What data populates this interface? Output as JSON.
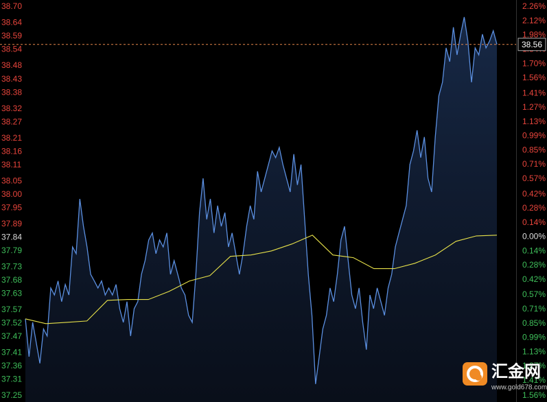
{
  "chart_data": {
    "type": "line",
    "reference": 37.84,
    "last_price": 38.56,
    "last_price_label": "38.56",
    "ylim": [
      37.25,
      38.7
    ],
    "yticks": [
      {
        "value": 38.7,
        "label": "38.70"
      },
      38.64,
      38.59,
      38.54,
      38.48,
      38.43,
      38.38,
      38.32,
      38.27,
      38.21,
      38.16,
      38.11,
      38.05,
      {
        "value": 38.0,
        "label": "38.00"
      },
      37.95,
      37.89,
      37.84,
      37.79,
      37.73,
      37.68,
      37.63,
      37.57,
      37.52,
      37.47,
      37.41,
      37.36,
      37.31,
      37.25
    ],
    "y2lim": [
      -1.56,
      2.26
    ],
    "y2ticks": [
      {
        "value": 2.26,
        "label": "2.26%"
      },
      {
        "value": 2.12,
        "label": "2.12%"
      },
      {
        "value": 1.98,
        "label": "1.98%"
      },
      {
        "value": 1.84,
        "label": "1.84%"
      },
      {
        "value": 1.7,
        "label": "1.70%"
      },
      {
        "value": 1.56,
        "label": "1.56%"
      },
      {
        "value": 1.41,
        "label": "1.41%"
      },
      {
        "value": 1.27,
        "label": "1.27%"
      },
      {
        "value": 1.13,
        "label": "1.13%"
      },
      {
        "value": 0.99,
        "label": "0.99%"
      },
      {
        "value": 0.85,
        "label": "0.85%"
      },
      {
        "value": 0.71,
        "label": "0.71%"
      },
      {
        "value": 0.57,
        "label": "0.57%"
      },
      {
        "value": 0.42,
        "label": "0.42%"
      },
      {
        "value": 0.28,
        "label": "0.28%"
      },
      {
        "value": 0.14,
        "label": "0.14%"
      },
      {
        "value": 0,
        "label": "0.00%"
      },
      {
        "value": -0.14,
        "label": "0.14%"
      },
      {
        "value": -0.28,
        "label": "0.28%"
      },
      {
        "value": -0.42,
        "label": "0.42%"
      },
      {
        "value": -0.57,
        "label": "0.57%"
      },
      {
        "value": -0.71,
        "label": "0.71%"
      },
      {
        "value": -0.85,
        "label": "0.85%"
      },
      {
        "value": -0.99,
        "label": "0.99%"
      },
      {
        "value": -1.13,
        "label": "1.13%"
      },
      {
        "value": -1.27,
        "label": "1.27%"
      },
      {
        "value": -1.41,
        "label": "1.41%"
      },
      {
        "value": -1.56,
        "label": "1.56%"
      }
    ],
    "series": [
      {
        "name": "price",
        "color": "#5b8fe0",
        "values": [
          37.537,
          37.396,
          37.524,
          37.447,
          37.371,
          37.499,
          37.473,
          37.652,
          37.626,
          37.678,
          37.601,
          37.665,
          37.626,
          37.805,
          37.78,
          37.984,
          37.882,
          37.805,
          37.703,
          37.678,
          37.652,
          37.678,
          37.626,
          37.652,
          37.626,
          37.665,
          37.575,
          37.524,
          37.601,
          37.473,
          37.575,
          37.601,
          37.703,
          37.754,
          37.831,
          37.857,
          37.78,
          37.831,
          37.805,
          37.857,
          37.703,
          37.754,
          37.703,
          37.652,
          37.626,
          37.55,
          37.524,
          37.703,
          37.933,
          38.061,
          37.908,
          37.984,
          37.857,
          37.959,
          37.882,
          37.933,
          37.805,
          37.857,
          37.78,
          37.703,
          37.78,
          37.882,
          37.959,
          37.908,
          38.087,
          38.01,
          38.061,
          38.112,
          38.163,
          38.138,
          38.176,
          38.112,
          38.061,
          38.01,
          38.151,
          38.036,
          38.112,
          37.908,
          37.703,
          37.55,
          37.294,
          37.396,
          37.499,
          37.55,
          37.652,
          37.601,
          37.703,
          37.831,
          37.882,
          37.754,
          37.626,
          37.575,
          37.652,
          37.524,
          37.422,
          37.626,
          37.575,
          37.652,
          37.601,
          37.55,
          37.652,
          37.703,
          37.805,
          37.857,
          37.908,
          37.959,
          38.112,
          38.163,
          38.24,
          38.138,
          38.215,
          38.061,
          38.01,
          38.215,
          38.368,
          38.419,
          38.547,
          38.496,
          38.624,
          38.521,
          38.598,
          38.662,
          38.573,
          38.419,
          38.547,
          38.521,
          38.598,
          38.547,
          38.573,
          38.611,
          38.56
        ]
      },
      {
        "name": "average",
        "color": "#e8e24a",
        "values": [
          37.537,
          37.519,
          37.524,
          37.529,
          37.606,
          37.609,
          37.609,
          37.639,
          37.678,
          37.698,
          37.77,
          37.775,
          37.79,
          37.816,
          37.849,
          37.775,
          37.765,
          37.724,
          37.724,
          37.744,
          37.775,
          37.826,
          37.846,
          37.849
        ]
      }
    ],
    "watermark": {
      "brand": "汇金网",
      "url": "www.gold678.com"
    }
  }
}
